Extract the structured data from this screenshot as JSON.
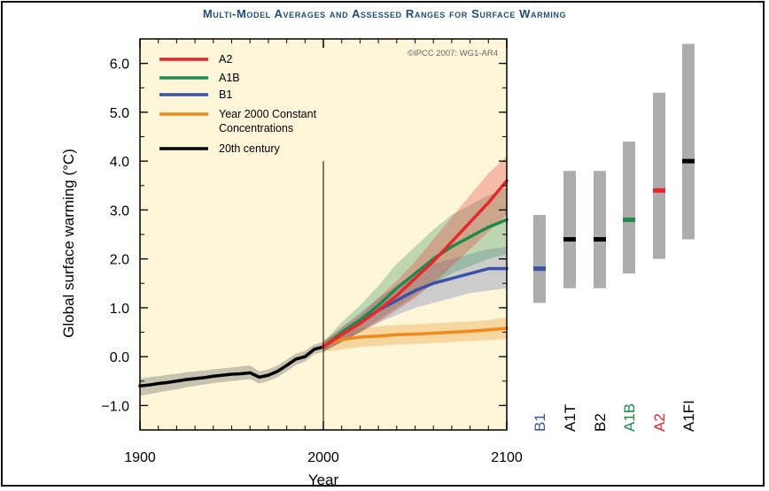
{
  "title": "Multi-Model Averages and Assessed Ranges for Surface Warming",
  "copyright": "©IPCC 2007: WG1-AR4",
  "colors": {
    "plot_bg": "#fdf6d8",
    "A2": "#e8262b",
    "A1B": "#1f8a4c",
    "B1": "#3b52a8",
    "constant": "#f08a1c",
    "twentieth": "#000000",
    "range_bar": "#adadad"
  },
  "chart_data": [
    {
      "type": "line",
      "title": "",
      "xlabel": "Year",
      "ylabel": "Global surface warming (°C)",
      "xlim": [
        1900,
        2100
      ],
      "ylim": [
        -1.5,
        6.5
      ],
      "x_ticks": [
        "1900",
        "2000",
        "2100"
      ],
      "y_ticks": [
        "−1.0",
        "0.0",
        "1.0",
        "2.0",
        "3.0",
        "4.0",
        "5.0",
        "6.0"
      ],
      "grid": false,
      "legend_position": "top-left",
      "series": [
        {
          "name": "A2",
          "color_key": "A2",
          "x": [
            2000,
            2010,
            2020,
            2030,
            2040,
            2050,
            2060,
            2070,
            2080,
            2090,
            2100
          ],
          "values": [
            0.2,
            0.45,
            0.68,
            0.95,
            1.25,
            1.6,
            1.95,
            2.35,
            2.75,
            3.15,
            3.6
          ],
          "lower": [
            0.1,
            0.3,
            0.5,
            0.7,
            0.95,
            1.2,
            1.5,
            1.85,
            2.2,
            2.55,
            2.9
          ],
          "upper": [
            0.3,
            0.6,
            0.85,
            1.2,
            1.55,
            1.95,
            2.4,
            2.85,
            3.3,
            3.75,
            4.1
          ]
        },
        {
          "name": "A1B",
          "color_key": "A1B",
          "x": [
            2000,
            2010,
            2020,
            2030,
            2040,
            2050,
            2060,
            2070,
            2080,
            2090,
            2100
          ],
          "values": [
            0.2,
            0.5,
            0.75,
            1.05,
            1.4,
            1.7,
            2.0,
            2.25,
            2.45,
            2.65,
            2.8
          ],
          "lower": [
            0.1,
            0.3,
            0.5,
            0.75,
            1.0,
            1.25,
            1.5,
            1.7,
            1.85,
            2.0,
            2.1
          ],
          "upper": [
            0.3,
            0.7,
            1.05,
            1.45,
            1.9,
            2.25,
            2.6,
            2.9,
            3.1,
            3.3,
            3.45
          ]
        },
        {
          "name": "B1",
          "color_key": "B1",
          "x": [
            2000,
            2010,
            2020,
            2030,
            2040,
            2050,
            2060,
            2070,
            2080,
            2090,
            2100
          ],
          "values": [
            0.2,
            0.45,
            0.7,
            0.95,
            1.15,
            1.35,
            1.5,
            1.6,
            1.7,
            1.8,
            1.8
          ],
          "lower": [
            0.1,
            0.3,
            0.5,
            0.7,
            0.85,
            1.0,
            1.1,
            1.2,
            1.3,
            1.35,
            1.4
          ],
          "upper": [
            0.3,
            0.6,
            0.9,
            1.2,
            1.45,
            1.7,
            1.9,
            2.0,
            2.1,
            2.2,
            2.25
          ]
        },
        {
          "name": "Year 2000 Constant Concentrations",
          "color_key": "constant",
          "x": [
            2000,
            2010,
            2020,
            2030,
            2040,
            2050,
            2060,
            2070,
            2080,
            2090,
            2100
          ],
          "values": [
            0.25,
            0.35,
            0.4,
            0.42,
            0.45,
            0.46,
            0.48,
            0.5,
            0.52,
            0.55,
            0.58
          ],
          "lower": [
            0.1,
            0.15,
            0.2,
            0.22,
            0.25,
            0.26,
            0.28,
            0.3,
            0.32,
            0.34,
            0.36
          ],
          "upper": [
            0.35,
            0.5,
            0.58,
            0.62,
            0.65,
            0.66,
            0.68,
            0.7,
            0.72,
            0.75,
            0.8
          ]
        },
        {
          "name": "20th century",
          "color_key": "twentieth",
          "x": [
            1900,
            1905,
            1910,
            1915,
            1920,
            1925,
            1930,
            1935,
            1940,
            1945,
            1950,
            1955,
            1960,
            1965,
            1970,
            1975,
            1980,
            1985,
            1990,
            1995,
            2000
          ],
          "values": [
            -0.6,
            -0.58,
            -0.55,
            -0.53,
            -0.5,
            -0.47,
            -0.45,
            -0.43,
            -0.4,
            -0.38,
            -0.36,
            -0.35,
            -0.33,
            -0.42,
            -0.38,
            -0.3,
            -0.18,
            -0.05,
            0.0,
            0.15,
            0.2
          ],
          "lower": [
            -0.8,
            -0.77,
            -0.73,
            -0.7,
            -0.67,
            -0.63,
            -0.6,
            -0.57,
            -0.54,
            -0.52,
            -0.5,
            -0.48,
            -0.46,
            -0.55,
            -0.5,
            -0.42,
            -0.3,
            -0.17,
            -0.1,
            0.05,
            0.1
          ],
          "upper": [
            -0.45,
            -0.42,
            -0.4,
            -0.37,
            -0.35,
            -0.32,
            -0.3,
            -0.28,
            -0.26,
            -0.24,
            -0.22,
            -0.2,
            -0.18,
            -0.3,
            -0.26,
            -0.18,
            -0.06,
            0.06,
            0.12,
            0.25,
            0.3
          ]
        }
      ],
      "markers": [
        {
          "x": 2000,
          "y_top": 4.0
        }
      ]
    },
    {
      "type": "bar",
      "title": "",
      "description_labels_only": true,
      "categories": [
        "B1",
        "A1T",
        "B2",
        "A1B",
        "A2",
        "A1FI"
      ],
      "label_colors": [
        "B1",
        "twentieth",
        "twentieth",
        "A1B",
        "A2",
        "twentieth"
      ],
      "ranges": [
        {
          "low": 1.1,
          "high": 2.9,
          "best": 1.8,
          "best_color": "B1"
        },
        {
          "low": 1.4,
          "high": 3.8,
          "best": 2.4,
          "best_color": "twentieth"
        },
        {
          "low": 1.4,
          "high": 3.8,
          "best": 2.4,
          "best_color": "twentieth"
        },
        {
          "low": 1.7,
          "high": 4.4,
          "best": 2.8,
          "best_color": "A1B"
        },
        {
          "low": 2.0,
          "high": 5.4,
          "best": 3.4,
          "best_color": "A2"
        },
        {
          "low": 2.4,
          "high": 6.4,
          "best": 4.0,
          "best_color": "twentieth"
        }
      ]
    }
  ]
}
